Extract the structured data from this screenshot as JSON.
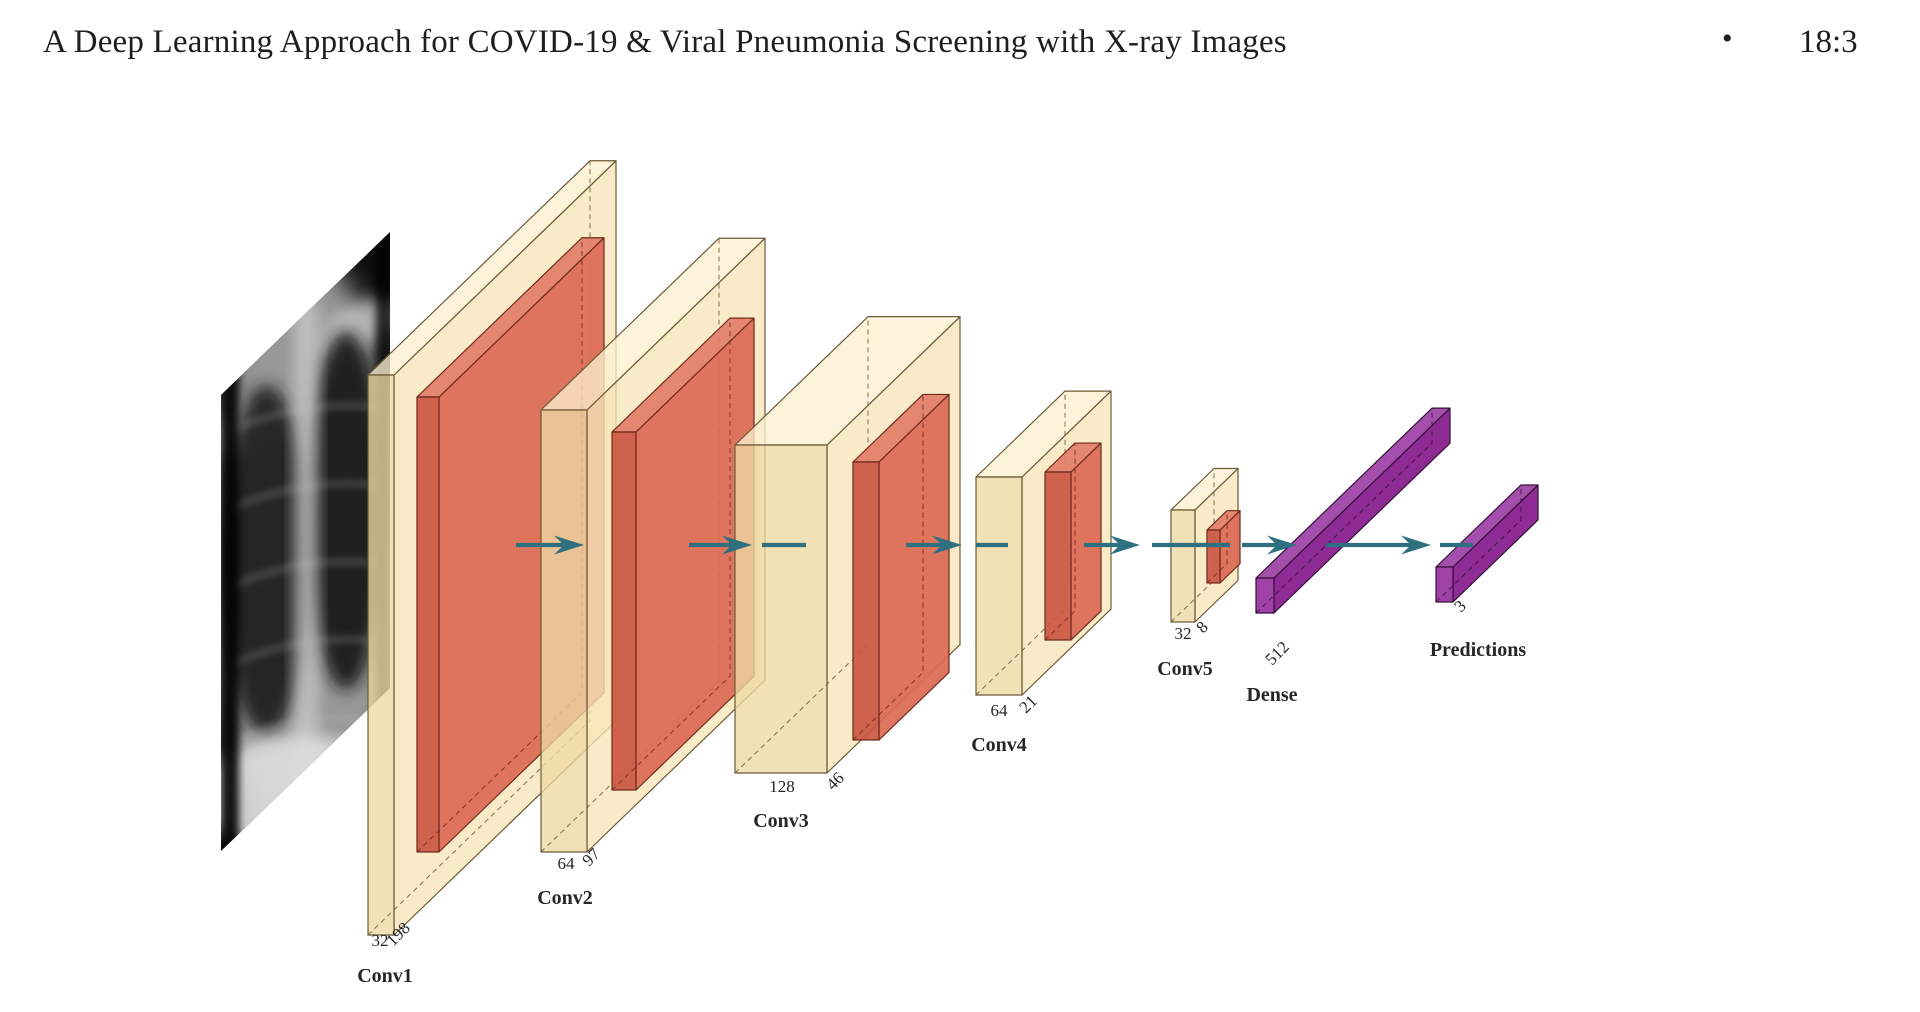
{
  "header": {
    "title": "A Deep Learning Approach for COVID-19 & Viral Pneumonia Screening with X-ray Images",
    "separator": "•",
    "page_number": "18:3"
  },
  "figure": {
    "input": {
      "description": "chest x-ray input image"
    },
    "layers": [
      {
        "id": "conv1",
        "label": "Conv1",
        "channels": "32",
        "spatial": "198",
        "type": "conv"
      },
      {
        "id": "conv2",
        "label": "Conv2",
        "channels": "64",
        "spatial": "97",
        "type": "conv"
      },
      {
        "id": "conv3",
        "label": "Conv3",
        "channels": "128",
        "spatial": "46",
        "type": "conv"
      },
      {
        "id": "conv4",
        "label": "Conv4",
        "channels": "64",
        "spatial": "21",
        "type": "conv"
      },
      {
        "id": "conv5",
        "label": "Conv5",
        "channels": "32",
        "spatial": "8",
        "type": "conv"
      },
      {
        "id": "dense",
        "label": "Dense",
        "units": "512",
        "type": "dense"
      },
      {
        "id": "predictions",
        "label": "Predictions",
        "units": "3",
        "type": "dense"
      }
    ],
    "colors": {
      "conv_side": "#F7E6B8",
      "conv_front": "#EDD9A3",
      "conv_top": "#FBF0D0",
      "conv_stroke": "#6B5A36",
      "map_side": "#DC6A55",
      "map_front": "#CB5743",
      "map_top": "#E37F69",
      "map_stroke": "#70291C",
      "dense_side": "#8E2B94",
      "dense_front": "#A041A8",
      "dense_top": "#A44FAC",
      "dense_stroke": "#351038",
      "arrow": "#2E6F80"
    }
  }
}
